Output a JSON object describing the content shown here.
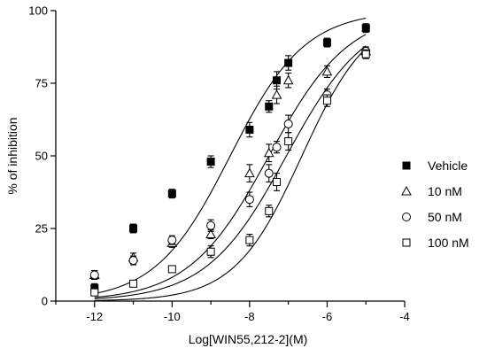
{
  "chart_data": {
    "type": "scatter",
    "xlabel": "Log[WIN55,212-2](M)",
    "ylabel": "% of inhibition",
    "xlim": [
      -13,
      -4
    ],
    "ylim": [
      0,
      100
    ],
    "x_ticks": [
      -12,
      -10,
      -8,
      -6,
      -4
    ],
    "y_ticks": [
      0,
      25,
      50,
      75,
      100
    ],
    "grid": false,
    "legend_position": "right",
    "series": [
      {
        "name": "Vehicle",
        "marker": "filled-square",
        "fit": {
          "bottom": 0,
          "top": 100,
          "log_ic50": -8.5,
          "hill": 0.45
        },
        "points": [
          {
            "x": -12,
            "y": 4.5,
            "err": 1.5
          },
          {
            "x": -11,
            "y": 25,
            "err": 1.5
          },
          {
            "x": -10,
            "y": 37,
            "err": 1.5
          },
          {
            "x": -9,
            "y": 48,
            "err": 2
          },
          {
            "x": -8,
            "y": 59,
            "err": 2.5
          },
          {
            "x": -7.5,
            "y": 67,
            "err": 2
          },
          {
            "x": -7.3,
            "y": 76,
            "err": 3
          },
          {
            "x": -7,
            "y": 82,
            "err": 2.5
          },
          {
            "x": -6,
            "y": 89,
            "err": 1.5
          },
          {
            "x": -5,
            "y": 94,
            "err": 1.5
          }
        ]
      },
      {
        "name": "10 nM",
        "marker": "open-triangle",
        "fit": {
          "bottom": 0,
          "top": 100,
          "log_ic50": -7.5,
          "hill": 0.42
        },
        "points": [
          {
            "x": -12,
            "y": 9,
            "err": 1.5
          },
          {
            "x": -11,
            "y": 15,
            "err": 1.5
          },
          {
            "x": -10,
            "y": 20,
            "err": 1.5
          },
          {
            "x": -9,
            "y": 23,
            "err": 1.5
          },
          {
            "x": -8,
            "y": 44,
            "err": 3
          },
          {
            "x": -7.5,
            "y": 51,
            "err": 3
          },
          {
            "x": -7.3,
            "y": 71,
            "err": 3
          },
          {
            "x": -7,
            "y": 76,
            "err": 2.5
          },
          {
            "x": -6,
            "y": 79,
            "err": 2
          },
          {
            "x": -5,
            "y": 86,
            "err": 1.5
          }
        ]
      },
      {
        "name": "50 nM",
        "marker": "open-circle",
        "fit": {
          "bottom": 0,
          "top": 100,
          "log_ic50": -7.05,
          "hill": 0.42
        },
        "points": [
          {
            "x": -12,
            "y": 9,
            "err": 1.5
          },
          {
            "x": -11,
            "y": 14,
            "err": 1.5
          },
          {
            "x": -10,
            "y": 21,
            "err": 1.5
          },
          {
            "x": -9,
            "y": 26,
            "err": 2
          },
          {
            "x": -8,
            "y": 35,
            "err": 2.5
          },
          {
            "x": -7.5,
            "y": 44,
            "err": 3
          },
          {
            "x": -7.3,
            "y": 53,
            "err": 2
          },
          {
            "x": -7,
            "y": 61,
            "err": 3
          },
          {
            "x": -6,
            "y": 71,
            "err": 2
          },
          {
            "x": -5,
            "y": 86,
            "err": 1.5
          }
        ]
      },
      {
        "name": "100 nM",
        "marker": "open-square",
        "fit": {
          "bottom": 0,
          "top": 100,
          "log_ic50": -6.65,
          "hill": 0.5
        },
        "points": [
          {
            "x": -12,
            "y": 3,
            "err": 1
          },
          {
            "x": -11,
            "y": 6,
            "err": 1
          },
          {
            "x": -10,
            "y": 11,
            "err": 1
          },
          {
            "x": -9,
            "y": 17,
            "err": 2
          },
          {
            "x": -8,
            "y": 21,
            "err": 2
          },
          {
            "x": -7.5,
            "y": 31,
            "err": 2
          },
          {
            "x": -7.3,
            "y": 41,
            "err": 3
          },
          {
            "x": -7,
            "y": 55,
            "err": 3
          },
          {
            "x": -6,
            "y": 69,
            "err": 2
          },
          {
            "x": -5,
            "y": 85,
            "err": 1.5
          }
        ]
      }
    ]
  }
}
